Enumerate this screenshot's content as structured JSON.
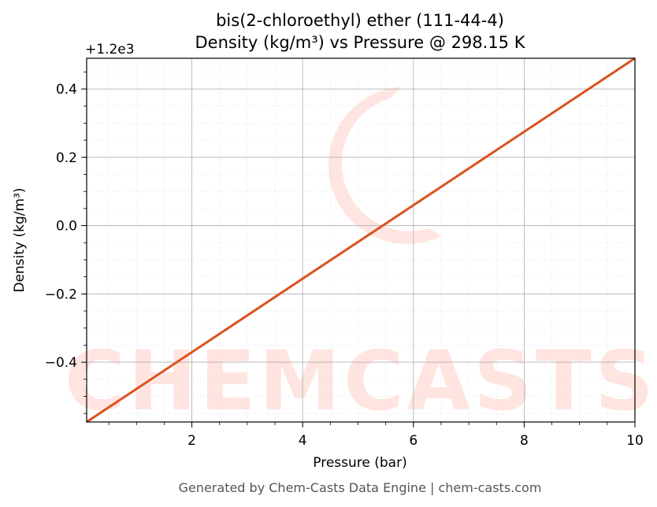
{
  "chart_data": {
    "type": "line",
    "title": "bis(2-chloroethyl) ether (111-44-4)",
    "subtitle": "Density (kg/m³) vs Pressure @ 298.15 K",
    "xlabel": "Pressure (bar)",
    "ylabel": "Density (kg/m³)",
    "y_offset_label": "+1.2e3",
    "xlim": [
      0.1,
      10
    ],
    "ylim": [
      -0.575,
      0.49
    ],
    "x_ticks": [
      2,
      4,
      6,
      8,
      10
    ],
    "y_ticks": [
      -0.4,
      -0.2,
      0.0,
      0.2,
      0.4
    ],
    "x_tick_labels": [
      "2",
      "4",
      "6",
      "8",
      "10"
    ],
    "y_tick_labels": [
      "−0.4",
      "−0.2",
      "0.0",
      "0.2",
      "0.4"
    ],
    "grid": true,
    "series": [
      {
        "x": [
          0.1,
          10
        ],
        "y": [
          -0.575,
          0.49
        ],
        "color": "#d9531e"
      }
    ]
  },
  "watermark": {
    "text": "CHEMCASTS"
  },
  "footer": "Generated by Chem-Casts Data Engine | chem-casts.com"
}
